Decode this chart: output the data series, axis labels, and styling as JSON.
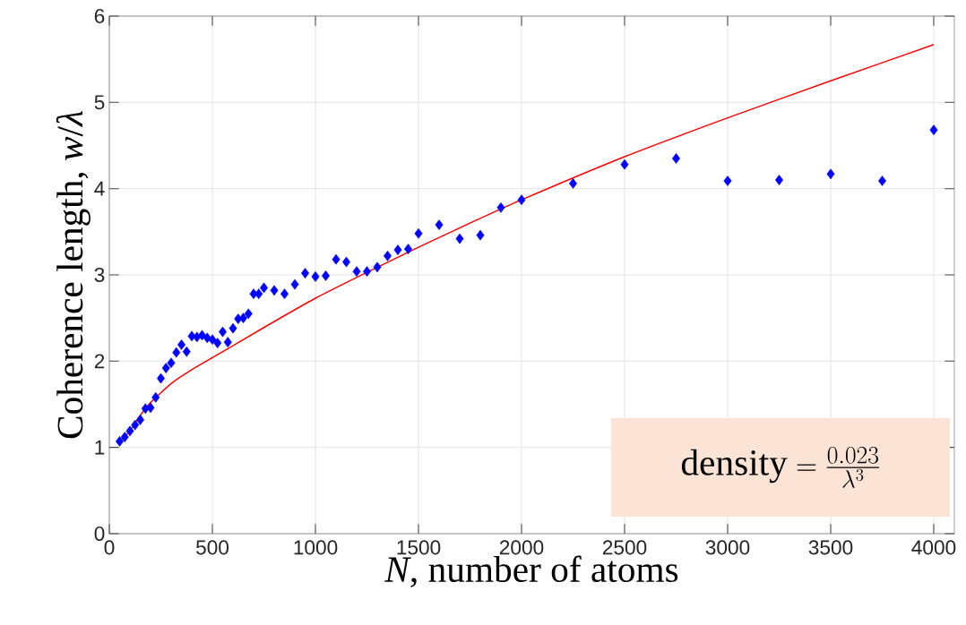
{
  "chart_data": {
    "type": "scatter",
    "xlabel": "*N*, number of atoms",
    "ylabel": "Coherence length, *w*/*λ*",
    "annotations": [
      "\\text{density}=\\frac{0.023}{\\lambda^{3}}"
    ],
    "xlim": [
      0,
      4100
    ],
    "ylim": [
      0,
      6
    ],
    "xticks": [
      0,
      500,
      1000,
      1500,
      2000,
      2500,
      3000,
      3500,
      4000
    ],
    "yticks": [
      0,
      1,
      2,
      3,
      4,
      5,
      6
    ],
    "grid": true,
    "series": [
      {
        "color": "#0000ff",
        "marker": "diamond",
        "x": [
          50,
          75,
          100,
          125,
          150,
          175,
          200,
          225,
          250,
          275,
          300,
          325,
          350,
          375,
          400,
          425,
          450,
          475,
          500,
          525,
          550,
          575,
          600,
          625,
          650,
          675,
          700,
          725,
          750,
          800,
          850,
          900,
          950,
          1000,
          1050,
          1100,
          1150,
          1200,
          1250,
          1300,
          1350,
          1400,
          1450,
          1500,
          1600,
          1700,
          1800,
          1900,
          2000,
          2250,
          2500,
          2750,
          3000,
          3250,
          3500,
          3750,
          4000
        ],
        "values": [
          1.07,
          1.12,
          1.19,
          1.26,
          1.32,
          1.45,
          1.46,
          1.58,
          1.8,
          1.92,
          1.98,
          2.1,
          2.19,
          2.11,
          2.29,
          2.28,
          2.3,
          2.27,
          2.25,
          2.21,
          2.34,
          2.22,
          2.38,
          2.49,
          2.5,
          2.55,
          2.78,
          2.78,
          2.85,
          2.82,
          2.78,
          2.89,
          3.02,
          2.98,
          2.99,
          3.18,
          3.15,
          3.04,
          3.04,
          3.09,
          3.22,
          3.29,
          3.3,
          3.48,
          3.58,
          3.42,
          3.46,
          3.78,
          3.87,
          4.06,
          4.28,
          4.35,
          4.09,
          4.1,
          4.17,
          4.09,
          4.68
        ]
      },
      {
        "type": "line",
        "color": "#ff0000",
        "marker": "none",
        "x": [
          50,
          100,
          150,
          200,
          300,
          400,
          500,
          750,
          1000,
          1250,
          1500,
          1750,
          2000,
          2500,
          3000,
          3500,
          4000
        ],
        "values": [
          1.07,
          1.19,
          1.37,
          1.52,
          1.74,
          1.9,
          2.04,
          2.39,
          2.73,
          3.03,
          3.32,
          3.6,
          3.87,
          4.37,
          4.82,
          5.25,
          5.67
        ]
      }
    ]
  }
}
